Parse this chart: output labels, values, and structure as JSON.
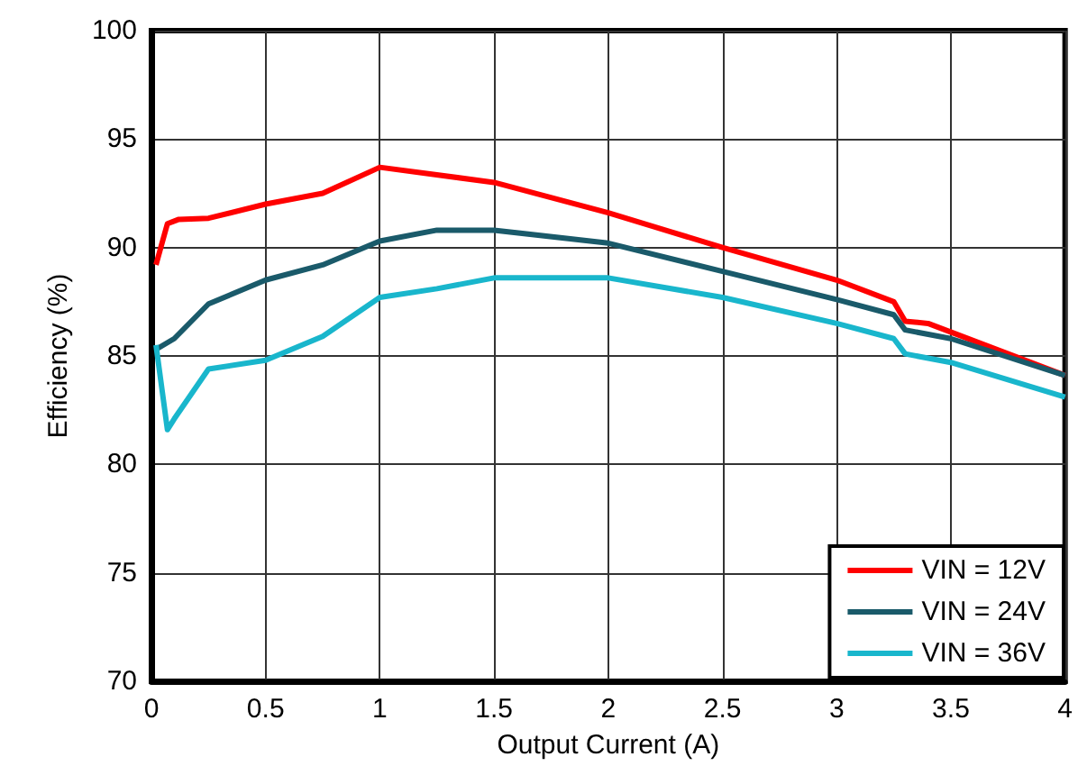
{
  "chart_data": {
    "type": "line",
    "xlabel": "Output Current (A)",
    "ylabel": "Efficiency (%)",
    "xlim": [
      0,
      4
    ],
    "xticks": [
      0,
      0.5,
      1,
      1.5,
      2,
      2.5,
      3,
      3.5,
      4
    ],
    "ylim": [
      70,
      100
    ],
    "yticks": [
      70,
      75,
      80,
      85,
      90,
      95,
      100
    ],
    "grid": true,
    "legend": "bottom right",
    "marker": "none",
    "line_style": "solid",
    "series": [
      {
        "name": "VIN = 12V",
        "color": "#ff0000",
        "x": [
          0.02,
          0.07,
          0.12,
          0.25,
          0.5,
          0.75,
          1,
          1.5,
          2,
          2.5,
          3,
          3.25,
          3.3,
          3.4,
          4
        ],
        "values": [
          89.2,
          91.1,
          91.3,
          91.35,
          92,
          92.5,
          93.7,
          93,
          91.6,
          90,
          88.5,
          87.5,
          86.6,
          86.5,
          84.1
        ]
      },
      {
        "name": "VIN = 24V",
        "color": "#1a5a6a",
        "x": [
          0.02,
          0.1,
          0.25,
          0.5,
          0.75,
          1,
          1.25,
          1.5,
          2,
          2.5,
          3,
          3.25,
          3.3,
          3.5,
          4
        ],
        "values": [
          85.3,
          85.8,
          87.4,
          88.5,
          89.2,
          90.3,
          90.8,
          90.8,
          90.2,
          88.9,
          87.6,
          86.9,
          86.2,
          85.8,
          84.1
        ]
      },
      {
        "name": "VIN = 36V",
        "color": "#19b6cc",
        "x": [
          0.02,
          0.07,
          0.1,
          0.25,
          0.5,
          0.75,
          1,
          1.25,
          1.5,
          2,
          2.5,
          3,
          3.25,
          3.3,
          3.5,
          4
        ],
        "values": [
          85.5,
          81.6,
          82.1,
          84.4,
          84.8,
          85.9,
          87.7,
          88.1,
          88.6,
          88.6,
          87.7,
          86.5,
          85.8,
          85.1,
          84.7,
          83.1
        ]
      }
    ]
  }
}
